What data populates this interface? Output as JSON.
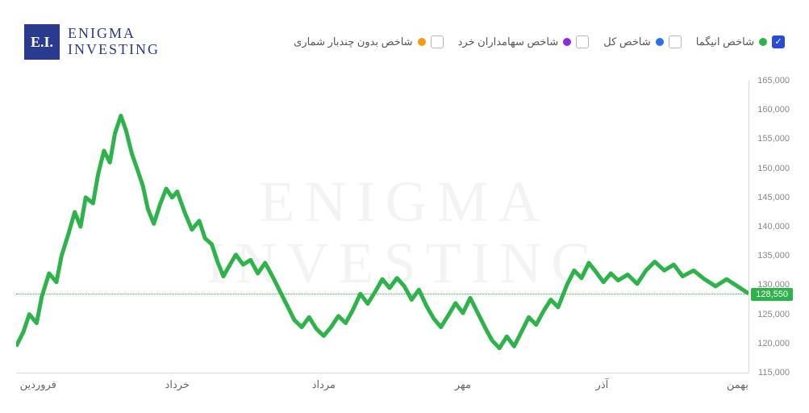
{
  "logo": {
    "square_text": "E.I.",
    "line1": "ENIGMA",
    "line2": "INVESTING",
    "square_bg": "#2a3a8f",
    "text_color": "#2a3a8f"
  },
  "watermark": {
    "line1": "ENIGMA",
    "line2": "INVESTING",
    "color": "#f3f3f3"
  },
  "legend": {
    "items": [
      {
        "label": "شاخص انیگما",
        "color": "#2db34a",
        "checked": true
      },
      {
        "label": "شاخص کل",
        "color": "#2a6ff0",
        "checked": false
      },
      {
        "label": "شاخص سهامداران خرد",
        "color": "#8a2be2",
        "checked": false
      },
      {
        "label": "شاخص بدون چندبار شماری",
        "color": "#f39c12",
        "checked": false
      }
    ]
  },
  "chart": {
    "type": "line",
    "y_axis": {
      "min": 115000,
      "max": 165000,
      "step": 5000,
      "ticks": [
        "115,000",
        "120,000",
        "125,000",
        "130,000",
        "135,000",
        "140,000",
        "145,000",
        "150,000",
        "155,000",
        "160,000",
        "165,000"
      ],
      "label_color": "#888",
      "label_fontsize": 11
    },
    "x_axis": {
      "labels": [
        {
          "text": "فروردین",
          "pos": 0.03
        },
        {
          "text": "خرداد",
          "pos": 0.22
        },
        {
          "text": "مرداد",
          "pos": 0.42
        },
        {
          "text": "مهر",
          "pos": 0.61
        },
        {
          "text": "آذر",
          "pos": 0.8
        },
        {
          "text": "بهمن",
          "pos": 0.985
        }
      ],
      "label_color": "#666",
      "label_fontsize": 13
    },
    "reference": {
      "value": 128550,
      "label": "128,550",
      "color": "#2db34a"
    },
    "series": {
      "color": "#2db34a",
      "stroke_width": 1.8,
      "points": [
        [
          0.0,
          119500
        ],
        [
          0.01,
          122000
        ],
        [
          0.018,
          125000
        ],
        [
          0.028,
          123500
        ],
        [
          0.035,
          128000
        ],
        [
          0.045,
          132000
        ],
        [
          0.055,
          130500
        ],
        [
          0.062,
          135000
        ],
        [
          0.072,
          139000
        ],
        [
          0.08,
          142500
        ],
        [
          0.088,
          140000
        ],
        [
          0.095,
          145000
        ],
        [
          0.105,
          144000
        ],
        [
          0.112,
          149000
        ],
        [
          0.12,
          153000
        ],
        [
          0.128,
          151000
        ],
        [
          0.135,
          156000
        ],
        [
          0.143,
          159000
        ],
        [
          0.15,
          156500
        ],
        [
          0.158,
          152500
        ],
        [
          0.165,
          150000
        ],
        [
          0.173,
          147000
        ],
        [
          0.18,
          143000
        ],
        [
          0.188,
          140500
        ],
        [
          0.197,
          144000
        ],
        [
          0.205,
          146500
        ],
        [
          0.213,
          145000
        ],
        [
          0.22,
          146000
        ],
        [
          0.23,
          142500
        ],
        [
          0.24,
          139500
        ],
        [
          0.25,
          141000
        ],
        [
          0.258,
          138000
        ],
        [
          0.267,
          137000
        ],
        [
          0.275,
          134000
        ],
        [
          0.283,
          131500
        ],
        [
          0.292,
          133500
        ],
        [
          0.3,
          135200
        ],
        [
          0.31,
          133500
        ],
        [
          0.32,
          134300
        ],
        [
          0.33,
          132000
        ],
        [
          0.34,
          133800
        ],
        [
          0.35,
          131500
        ],
        [
          0.36,
          129000
        ],
        [
          0.37,
          126500
        ],
        [
          0.38,
          124000
        ],
        [
          0.39,
          122800
        ],
        [
          0.4,
          124500
        ],
        [
          0.41,
          122500
        ],
        [
          0.42,
          121300
        ],
        [
          0.43,
          122800
        ],
        [
          0.44,
          124700
        ],
        [
          0.45,
          123500
        ],
        [
          0.46,
          125800
        ],
        [
          0.47,
          128500
        ],
        [
          0.48,
          126800
        ],
        [
          0.49,
          128800
        ],
        [
          0.5,
          131000
        ],
        [
          0.51,
          129500
        ],
        [
          0.52,
          131200
        ],
        [
          0.53,
          129800
        ],
        [
          0.54,
          127500
        ],
        [
          0.55,
          129200
        ],
        [
          0.56,
          126500
        ],
        [
          0.57,
          124300
        ],
        [
          0.58,
          122800
        ],
        [
          0.59,
          124800
        ],
        [
          0.6,
          126900
        ],
        [
          0.61,
          125200
        ],
        [
          0.62,
          127800
        ],
        [
          0.63,
          125300
        ],
        [
          0.64,
          122800
        ],
        [
          0.65,
          120500
        ],
        [
          0.66,
          119200
        ],
        [
          0.67,
          121200
        ],
        [
          0.68,
          119500
        ],
        [
          0.69,
          122000
        ],
        [
          0.7,
          124500
        ],
        [
          0.71,
          123200
        ],
        [
          0.72,
          125500
        ],
        [
          0.73,
          127500
        ],
        [
          0.74,
          126200
        ],
        [
          0.752,
          130000
        ],
        [
          0.762,
          132500
        ],
        [
          0.772,
          131200
        ],
        [
          0.782,
          133800
        ],
        [
          0.792,
          132200
        ],
        [
          0.802,
          130500
        ],
        [
          0.812,
          132000
        ],
        [
          0.822,
          130800
        ],
        [
          0.835,
          131800
        ],
        [
          0.848,
          130200
        ],
        [
          0.86,
          132500
        ],
        [
          0.872,
          134000
        ],
        [
          0.885,
          132500
        ],
        [
          0.898,
          133500
        ],
        [
          0.91,
          131500
        ],
        [
          0.925,
          132500
        ],
        [
          0.94,
          131000
        ],
        [
          0.955,
          129800
        ],
        [
          0.97,
          131000
        ],
        [
          0.985,
          129800
        ],
        [
          1.0,
          128550
        ]
      ]
    },
    "background_color": "#ffffff",
    "axis_line_color": "#d9d9d9"
  }
}
